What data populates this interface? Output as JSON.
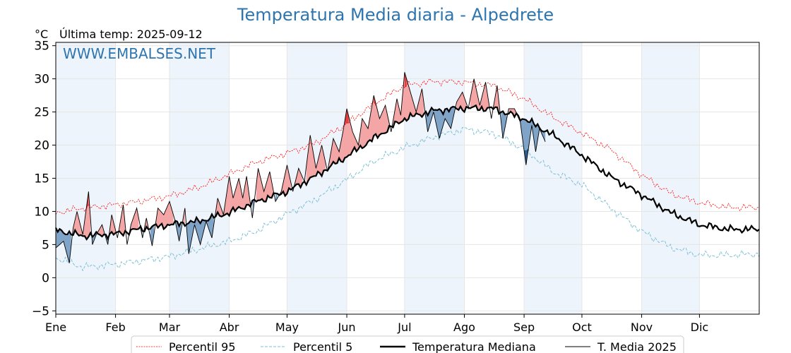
{
  "chart_data": {
    "type": "line",
    "title": "Temperatura Media diaria - Alpedrete",
    "unit": "°C",
    "last_temp_label": "Última temp: 2025-09-12",
    "watermark": "WWW.EMBALSES.NET",
    "x_axis": {
      "type": "day_of_year",
      "range": [
        1,
        366
      ],
      "tick_days": [
        1,
        32,
        60,
        91,
        121,
        152,
        182,
        213,
        244,
        274,
        305,
        335
      ],
      "tick_labels": [
        "Ene",
        "Feb",
        "Mar",
        "Abr",
        "May",
        "Jun",
        "Jul",
        "Ago",
        "Sep",
        "Oct",
        "Nov",
        "Dic"
      ]
    },
    "y_axis": {
      "range": [
        -5.5,
        35.5
      ],
      "ticks": [
        -5,
        0,
        5,
        10,
        15,
        20,
        25,
        30,
        35
      ],
      "tick_labels": [
        "−5",
        "0",
        "5",
        "10",
        "15",
        "20",
        "25",
        "30",
        "35"
      ]
    },
    "grid": true,
    "alternate_month_shading": true,
    "legend": {
      "placement": "bottom-center",
      "entries": [
        "Percentil 95",
        "Percentil 5",
        "Temperatura Mediana",
        "T. Media 2025"
      ]
    },
    "colors": {
      "p95": "#ff0000",
      "p5": "#7ec0d8",
      "median": "#000000",
      "current": "#000000",
      "above_median_fill": "#f4a6a6",
      "above_p95_fill": "#e04040",
      "below_median_fill": "#7fa4c8",
      "below_p5_fill": "#2f5d8e",
      "month_shade": "#eef4fb",
      "title": "#2e75b0"
    },
    "series_knots": {
      "median": {
        "days": [
          1,
          15,
          32,
          46,
          60,
          75,
          91,
          105,
          121,
          135,
          152,
          166,
          182,
          197,
          213,
          228,
          244,
          259,
          274,
          289,
          305,
          320,
          335,
          350,
          366
        ],
        "values": [
          7.2,
          6.3,
          6.6,
          7.4,
          8.0,
          8.5,
          9.8,
          11.5,
          13.0,
          15.2,
          18.3,
          21.0,
          24.0,
          25.2,
          25.6,
          25.5,
          24.0,
          21.5,
          18.5,
          15.2,
          12.5,
          9.8,
          8.0,
          7.3,
          7.3
        ]
      },
      "p95": {
        "days": [
          1,
          15,
          32,
          46,
          60,
          75,
          91,
          105,
          121,
          135,
          152,
          166,
          182,
          197,
          213,
          228,
          244,
          259,
          274,
          289,
          305,
          320,
          335,
          350,
          366
        ],
        "values": [
          9.8,
          10.5,
          11.0,
          11.6,
          12.3,
          13.6,
          15.6,
          17.4,
          18.8,
          20.2,
          23.2,
          26.2,
          29.0,
          29.6,
          29.5,
          29.0,
          27.0,
          24.2,
          21.8,
          19.3,
          15.5,
          12.7,
          11.3,
          10.6,
          10.6
        ]
      },
      "p5": {
        "days": [
          1,
          15,
          32,
          46,
          60,
          75,
          91,
          105,
          121,
          135,
          152,
          166,
          182,
          197,
          213,
          228,
          244,
          259,
          274,
          289,
          305,
          320,
          335,
          350,
          366
        ],
        "values": [
          3.0,
          1.6,
          2.0,
          2.6,
          3.2,
          4.3,
          5.5,
          7.0,
          9.6,
          11.7,
          14.8,
          17.6,
          19.6,
          21.2,
          22.4,
          21.8,
          19.4,
          16.0,
          14.0,
          10.5,
          7.0,
          4.6,
          3.4,
          3.4,
          3.6
        ]
      },
      "t_media_2025": {
        "days": [
          1,
          5,
          8,
          10,
          12,
          15,
          18,
          20,
          22,
          25,
          28,
          30,
          33,
          36,
          38,
          40,
          43,
          46,
          48,
          51,
          54,
          57,
          60,
          63,
          65,
          68,
          70,
          73,
          76,
          79,
          82,
          85,
          88,
          91,
          93,
          96,
          98,
          100,
          103,
          106,
          109,
          112,
          115,
          118,
          121,
          124,
          127,
          130,
          133,
          136,
          139,
          142,
          145,
          148,
          150,
          152,
          155,
          158,
          160,
          163,
          166,
          169,
          172,
          175,
          178,
          180,
          182,
          185,
          188,
          191,
          194,
          197,
          200,
          203,
          206,
          209,
          212,
          215,
          218,
          221,
          224,
          227,
          230,
          233,
          236,
          239,
          242,
          245,
          248,
          250,
          252,
          255
        ],
        "values": [
          4.5,
          5.5,
          2.2,
          7.5,
          10.0,
          6.5,
          13.0,
          5.0,
          6.5,
          8.0,
          5.0,
          9.5,
          6.0,
          11.0,
          5.0,
          8.0,
          10.5,
          6.0,
          9.0,
          4.8,
          10.5,
          9.5,
          11.5,
          8.5,
          5.5,
          10.5,
          3.6,
          8.0,
          5.0,
          8.5,
          6.0,
          12.0,
          9.5,
          15.3,
          12.0,
          15.0,
          12.0,
          15.3,
          9.0,
          16.5,
          13.0,
          16.0,
          11.5,
          13.0,
          17.0,
          13.0,
          16.5,
          14.5,
          21.5,
          16.5,
          20.0,
          16.0,
          21.0,
          19.0,
          22.0,
          25.5,
          22.0,
          20.0,
          24.0,
          22.5,
          27.5,
          24.0,
          26.0,
          22.0,
          27.0,
          24.5,
          31.0,
          28.0,
          25.0,
          28.5,
          22.0,
          25.0,
          21.0,
          24.0,
          22.5,
          26.5,
          28.0,
          25.5,
          30.0,
          26.0,
          29.5,
          24.0,
          29.0,
          21.0,
          25.5,
          25.5,
          23.5,
          17.0,
          23.0,
          19.0,
          22.5,
          20.5
        ]
      }
    }
  }
}
